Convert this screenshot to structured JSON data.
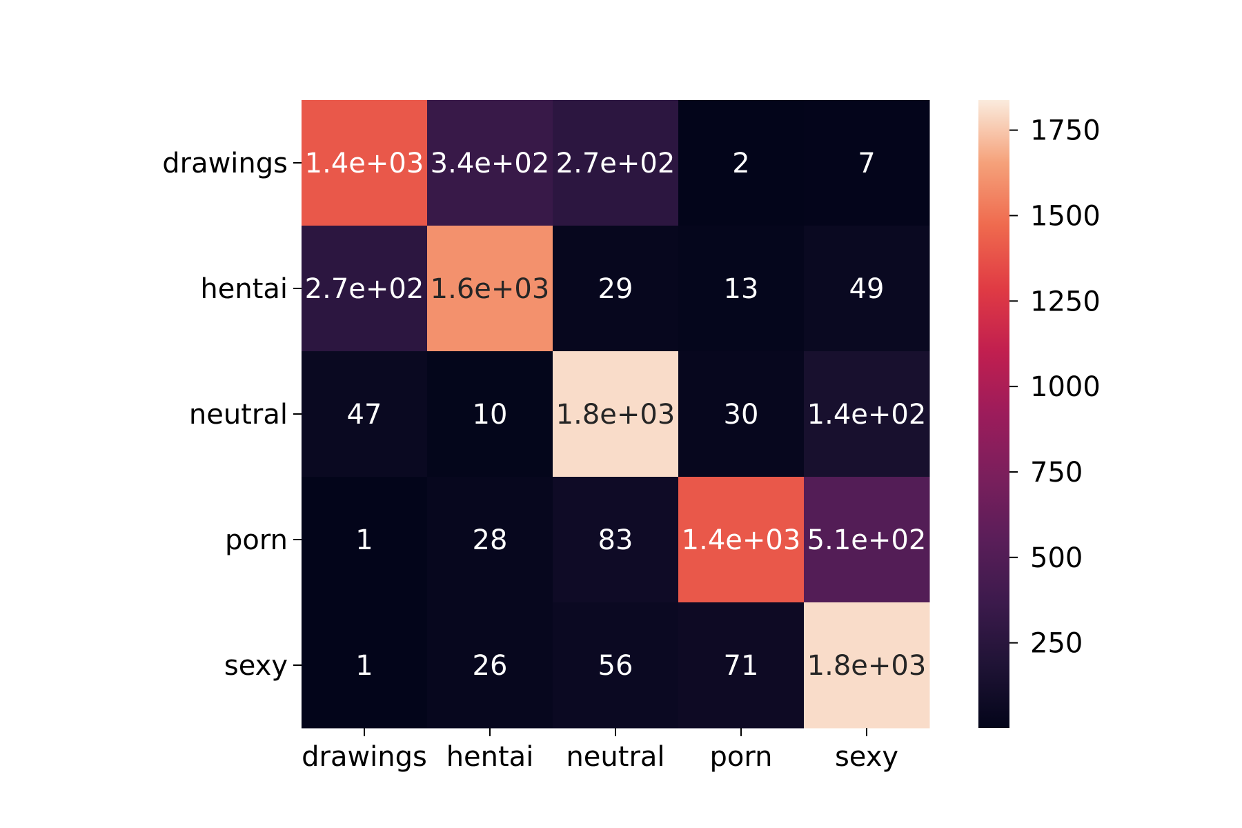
{
  "chart_data": {
    "type": "heatmap",
    "title": "",
    "xlabel": "",
    "ylabel": "",
    "rows": [
      "drawings",
      "hentai",
      "neutral",
      "porn",
      "sexy"
    ],
    "columns": [
      "drawings",
      "hentai",
      "neutral",
      "porn",
      "sexy"
    ],
    "values": [
      [
        1400,
        340,
        270,
        2,
        7
      ],
      [
        270,
        1600,
        29,
        13,
        49
      ],
      [
        47,
        10,
        1800,
        30,
        140
      ],
      [
        1,
        28,
        83,
        1400,
        510
      ],
      [
        1,
        26,
        56,
        71,
        1800
      ]
    ],
    "annotations": [
      [
        "1.4e+03",
        "3.4e+02",
        "2.7e+02",
        "2",
        "7"
      ],
      [
        "2.7e+02",
        "1.6e+03",
        "29",
        "13",
        "49"
      ],
      [
        "47",
        "10",
        "1.8e+03",
        "30",
        "1.4e+02"
      ],
      [
        "1",
        "28",
        "83",
        "1.4e+03",
        "5.1e+02"
      ],
      [
        "1",
        "26",
        "56",
        "71",
        "1.8e+03"
      ]
    ],
    "colorbar": {
      "colormap": "rocket",
      "min": 1,
      "max": 1838,
      "ticks": [
        250,
        500,
        750,
        1000,
        1250,
        1500,
        1750
      ]
    }
  }
}
